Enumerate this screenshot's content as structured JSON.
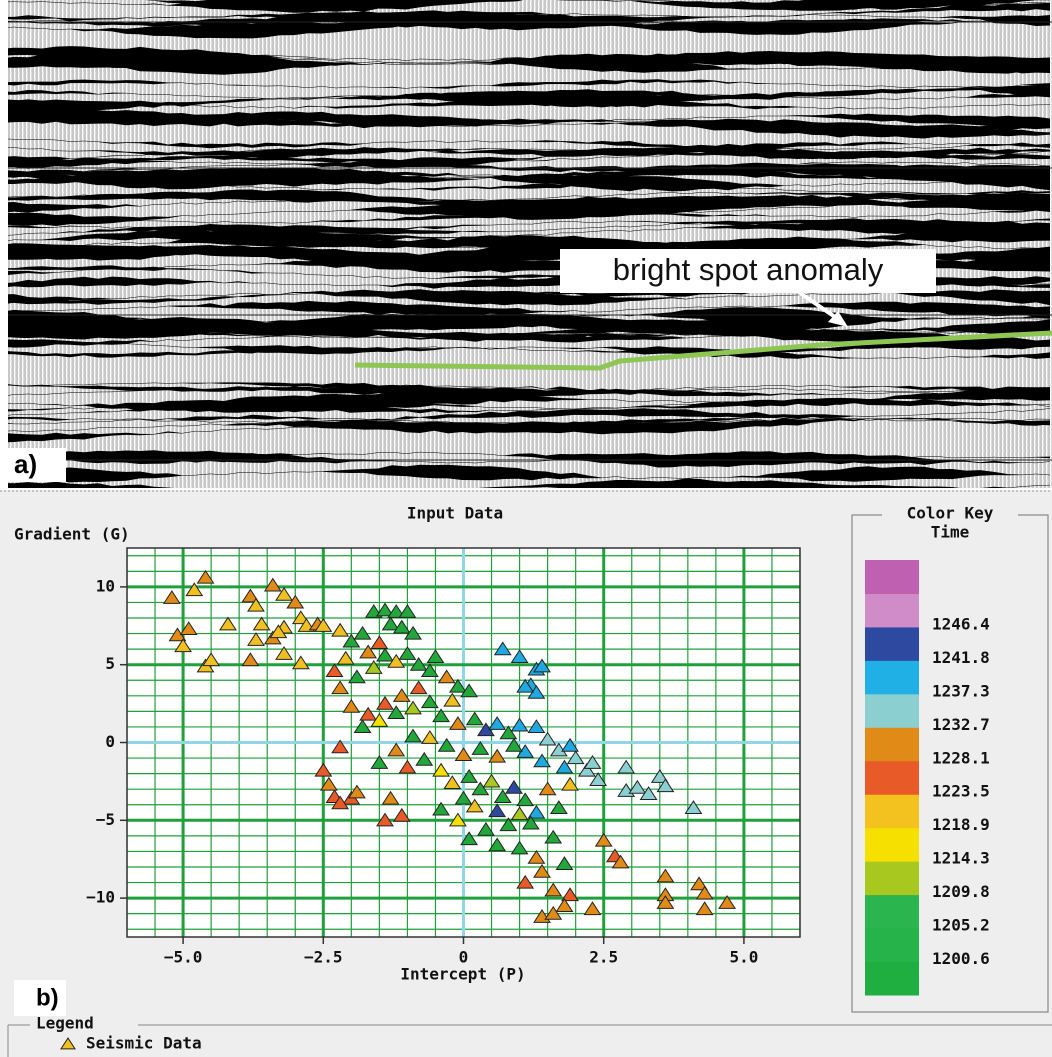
{
  "panel_a": {
    "label": "a)",
    "annotation": "bright spot anomaly"
  },
  "chart_data": {
    "type": "scatter",
    "panel_label": "b)",
    "title": "Input Data",
    "y_label": "Gradient (G)",
    "x_label": "Intercept (P)",
    "xlim": [
      -6,
      6
    ],
    "ylim": [
      -12.5,
      12.5
    ],
    "xticks": [
      {
        "value": -5,
        "label": "−5.0"
      },
      {
        "value": -2.5,
        "label": "−2.5"
      },
      0,
      2.5,
      {
        "value": 5,
        "label": "5.0"
      }
    ],
    "yticks": [
      {
        "value": -10,
        "label": "−10"
      },
      {
        "value": -5,
        "label": "−5"
      },
      0,
      5,
      10
    ],
    "x_minor_grid": [
      -6,
      -5.5,
      -4.5,
      -4,
      -3.5,
      -3,
      -2,
      -1.5,
      -1,
      -0.5,
      0.5,
      1,
      1.5,
      2,
      3,
      3.5,
      4,
      4.5,
      5.5,
      6
    ],
    "y_minor_grid": [
      -12,
      -11,
      -9,
      -8,
      -7,
      -6,
      -4,
      -3,
      -2,
      -1,
      1,
      2,
      3,
      4,
      6,
      7,
      8,
      9,
      11,
      12
    ],
    "grid": true,
    "grid_color": "#1fa03a",
    "zero_line_color": "#8fd6e6",
    "legend_title": "Legend",
    "legend_position": "bottom-left",
    "series": [
      {
        "name": "Seismic Data",
        "color": "#f0c020",
        "x": [
          -5.2,
          -4.8,
          -4.6,
          -5.1,
          -4.9,
          -5.0,
          -4.6,
          -4.5,
          -4.2,
          -3.8,
          -3.7,
          -3.4,
          -3.2,
          -3.0,
          -2.9,
          -3.6,
          -3.2,
          -3.4,
          -3.7,
          -3.8,
          -3.2,
          -2.9,
          -2.8,
          -2.6,
          -2.5,
          -3.3,
          -2.2,
          -2.0,
          -1.8,
          -1.6,
          -1.4,
          -1.2,
          -1.0,
          -1.3,
          -1.1,
          -0.9,
          -1.5,
          -1.7,
          -2.1,
          -2.3,
          -2.2,
          -1.9,
          -1.6,
          -1.4,
          -1.2,
          -1.0,
          -0.8,
          -0.6,
          -0.5,
          -0.3,
          -0.1,
          0.1,
          -0.2,
          -0.8,
          -1.1,
          -1.4,
          -1.7,
          -2.0,
          -2.2,
          -1.8,
          -1.5,
          -1.2,
          -0.9,
          -0.6,
          -0.4,
          -0.1,
          0.2,
          0.4,
          0.6,
          0.8,
          1.0,
          1.3,
          1.5,
          1.7,
          1.9,
          2.0,
          2.2,
          2.4,
          2.3,
          1.8,
          1.4,
          1.1,
          0.9,
          0.6,
          0.3,
          0.0,
          -0.3,
          -0.6,
          -0.9,
          -1.2,
          -1.5,
          -1.0,
          -0.7,
          -0.4,
          -0.2,
          0.1,
          0.3,
          0.5,
          0.7,
          0.9,
          1.1,
          1.3,
          1.5,
          1.7,
          1.9,
          1.2,
          1.0,
          0.8,
          0.6,
          0.4,
          0.2,
          0.0,
          -0.1,
          -0.4,
          0.1,
          0.6,
          1.0,
          1.3,
          1.6,
          1.8,
          1.4,
          1.1,
          1.6,
          1.9,
          1.8,
          1.4,
          1.6,
          2.3,
          2.5,
          2.7,
          2.8,
          -1.3,
          -1.1,
          -1.4,
          -2.5,
          -2.4,
          -2.3,
          -2.0,
          -2.2,
          -1.9,
          2.9,
          2.9,
          3.1,
          3.3,
          3.5,
          3.6,
          4.1,
          0.7,
          1.0,
          1.3,
          1.4,
          1.2,
          1.3,
          1.1,
          3.6,
          3.6,
          3.6,
          4.2,
          4.3,
          4.3,
          4.7
        ],
        "values": [
          9.3,
          9.8,
          10.6,
          6.9,
          7.3,
          6.2,
          4.9,
          5.3,
          7.6,
          9.4,
          8.8,
          10.1,
          9.5,
          9.0,
          8.0,
          7.6,
          7.4,
          6.7,
          6.6,
          5.3,
          5.7,
          5.1,
          7.5,
          7.6,
          7.5,
          7.1,
          7.2,
          6.5,
          7.0,
          8.4,
          8.5,
          8.4,
          8.4,
          7.6,
          7.4,
          7.0,
          6.4,
          5.8,
          5.4,
          4.6,
          3.5,
          4.2,
          4.8,
          5.6,
          5.2,
          5.7,
          5.0,
          4.6,
          5.5,
          4.2,
          3.6,
          3.3,
          2.7,
          3.5,
          3.0,
          2.5,
          1.8,
          2.3,
          -0.3,
          1.0,
          1.4,
          1.9,
          2.2,
          2.6,
          1.7,
          1.2,
          1.5,
          0.8,
          1.2,
          0.6,
          1.1,
          1.0,
          0.2,
          -0.5,
          -0.2,
          -1.0,
          -1.8,
          -2.4,
          -1.3,
          -1.6,
          -1.2,
          -0.6,
          -0.2,
          -0.9,
          -0.4,
          -0.8,
          -0.2,
          0.3,
          0.4,
          -0.5,
          -1.3,
          -1.6,
          -1.1,
          -1.8,
          -2.6,
          -2.2,
          -3.0,
          -2.5,
          -3.5,
          -2.9,
          -3.7,
          -4.5,
          -3.0,
          -4.2,
          -2.7,
          -5.2,
          -4.6,
          -5.3,
          -4.4,
          -5.6,
          -4.1,
          -3.6,
          -5.0,
          -4.3,
          -6.2,
          -6.6,
          -6.8,
          -7.4,
          -6.1,
          -7.8,
          -8.3,
          -9.0,
          -9.5,
          -9.8,
          -10.5,
          -11.2,
          -11.0,
          -10.7,
          -6.3,
          -7.3,
          -7.7,
          -3.6,
          -4.7,
          -5.0,
          -1.8,
          -2.7,
          -3.5,
          -3.6,
          -3.9,
          -3.2,
          -1.6,
          -3.1,
          -2.9,
          -3.3,
          -2.2,
          -2.8,
          -4.2,
          6.0,
          5.5,
          4.7,
          4.9,
          3.7,
          3.2,
          3.6,
          -8.6,
          -9.8,
          -10.3,
          -9.1,
          -9.7,
          -10.7,
          -10.3
        ],
        "point_colors": [
          "#e08a18",
          "#f0c020",
          "#e08a18",
          "#e08a18",
          "#e08a18",
          "#f0c020",
          "#f0c020",
          "#f0c020",
          "#f0c020",
          "#e08a18",
          "#f0c020",
          "#e08a18",
          "#f0c020",
          "#e08a18",
          "#f0c020",
          "#f0c020",
          "#f0c020",
          "#e08a18",
          "#f0c020",
          "#e08a18",
          "#f0c020",
          "#f0c020",
          "#f0c020",
          "#e08a18",
          "#f0c020",
          "#f0c020",
          "#f0c020",
          "#22a83a",
          "#22a83a",
          "#22a83a",
          "#22a83a",
          "#22a83a",
          "#22a83a",
          "#22a83a",
          "#22a83a",
          "#22a83a",
          "#e85a28",
          "#e08a18",
          "#f0c020",
          "#e85a28",
          "#e08a18",
          "#22a83a",
          "#a8c820",
          "#22a83a",
          "#f0c020",
          "#22a83a",
          "#22a83a",
          "#22a83a",
          "#22a83a",
          "#e08a18",
          "#22a83a",
          "#22a83a",
          "#f0c020",
          "#e85a28",
          "#e08a18",
          "#e85a28",
          "#e85a28",
          "#e08a18",
          "#e85a28",
          "#22a83a",
          "#f5e000",
          "#22a83a",
          "#a8c820",
          "#22a83a",
          "#22a83a",
          "#e08a18",
          "#22a83a",
          "#3048a0",
          "#20a8e0",
          "#22a83a",
          "#20a8e0",
          "#20a8e0",
          "#8ccfd0",
          "#8ccfd0",
          "#20a8e0",
          "#8ccfd0",
          "#8ccfd0",
          "#8ccfd0",
          "#8ccfd0",
          "#20a8e0",
          "#20a8e0",
          "#20a8e0",
          "#22a83a",
          "#e08a18",
          "#22a83a",
          "#e08a18",
          "#22a83a",
          "#f0c020",
          "#22a83a",
          "#e08a18",
          "#22a83a",
          "#e85a28",
          "#22a83a",
          "#f5e000",
          "#f0c020",
          "#22a83a",
          "#22a83a",
          "#a8c820",
          "#22a83a",
          "#3048a0",
          "#22a83a",
          "#20a8e0",
          "#e08a18",
          "#22a83a",
          "#f0c020",
          "#22a83a",
          "#a8c820",
          "#22a83a",
          "#3048a0",
          "#22a83a",
          "#f0c020",
          "#22a83a",
          "#f5e000",
          "#22a83a",
          "#22a83a",
          "#22a83a",
          "#22a83a",
          "#e08a18",
          "#22a83a",
          "#22a83a",
          "#e08a18",
          "#e85a28",
          "#e08a18",
          "#e85a28",
          "#e08a18",
          "#e08a18",
          "#e08a18",
          "#e08a18",
          "#e08a18",
          "#e85a28",
          "#e08a18",
          "#e08a18",
          "#e85a28",
          "#e85a28",
          "#e85a28",
          "#e08a18",
          "#e85a28",
          "#e85a28",
          "#e85a28",
          "#e08a18",
          "#8ccfd0",
          "#8ccfd0",
          "#8ccfd0",
          "#8ccfd0",
          "#8ccfd0",
          "#8ccfd0",
          "#8ccfd0",
          "#20a8e0",
          "#20a8e0",
          "#20a8e0",
          "#20a8e0",
          "#20a8e0",
          "#20a8e0",
          "#20a8e0",
          "#e08a18",
          "#e08a18",
          "#e08a18",
          "#e08a18",
          "#e08a18",
          "#e08a18",
          "#e08a18"
        ]
      }
    ],
    "colorbar": {
      "title": "Color Key",
      "subtitle": "Time",
      "colors": [
        "#1fae40",
        "#25b34a",
        "#2ab54e",
        "#a8c820",
        "#f5e000",
        "#f3c21e",
        "#e85a28",
        "#e08a18",
        "#8ccfd0",
        "#20b0e6",
        "#2e4aa0",
        "#d08cc8",
        "#c060b0"
      ],
      "labels": [
        1200.6,
        1205.2,
        1209.8,
        1214.3,
        1218.9,
        1223.5,
        1228.1,
        1232.7,
        1237.3,
        1241.8,
        1246.4
      ]
    }
  }
}
